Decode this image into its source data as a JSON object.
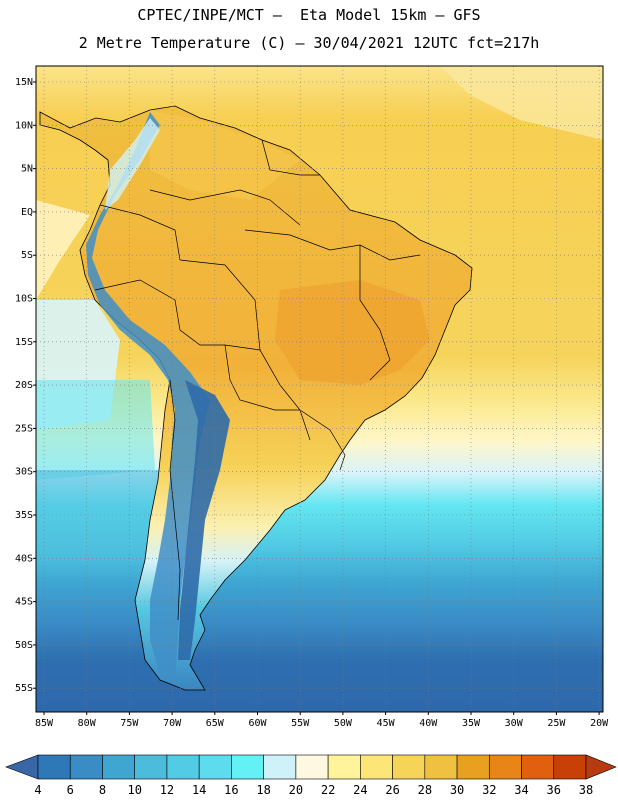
{
  "header": {
    "line1": "CPTEC/INPE/MCT –  Eta Model 15km – GFS",
    "line2": "2 Metre Temperature (C) – 30/04/2021 12UTC fct=217h"
  },
  "axes": {
    "lat_labels": [
      "15N",
      "10N",
      "5N",
      "EQ",
      "5S",
      "10S",
      "15S",
      "20S",
      "25S",
      "30S",
      "35S",
      "40S",
      "45S",
      "50S",
      "55S"
    ],
    "lon_labels": [
      "85W",
      "80W",
      "75W",
      "70W",
      "65W",
      "60W",
      "55W",
      "50W",
      "45W",
      "40W",
      "35W",
      "30W",
      "25W",
      "20W"
    ]
  },
  "colorbar": {
    "labels": [
      "4",
      "6",
      "8",
      "10",
      "12",
      "14",
      "16",
      "18",
      "20",
      "22",
      "24",
      "26",
      "28",
      "30",
      "32",
      "34",
      "36",
      "38"
    ],
    "colors": [
      "#3a66a8",
      "#2e78b8",
      "#3a8cc6",
      "#3fa6d2",
      "#4cbcdc",
      "#52cbe4",
      "#5cdcec",
      "#63f1f6",
      "#cff2fa",
      "#fff8e0",
      "#fff49c",
      "#fde678",
      "#f6d458",
      "#f0c040",
      "#e8a020",
      "#e88518",
      "#e06010",
      "#c84006",
      "#b83a10"
    ]
  },
  "map": {
    "region": "South America",
    "ocean_north_color": "#f9d25c",
    "ocean_south_color": "#2e68ac"
  }
}
